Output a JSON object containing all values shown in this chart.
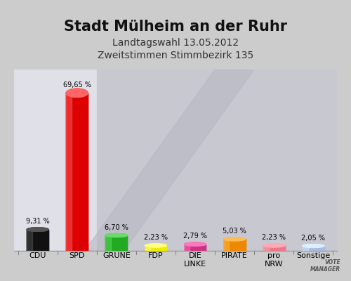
{
  "title": "Stadt Mülheim an der Ruhr",
  "subtitle1": "Landtagswahl 13.05.2012",
  "subtitle2": "Zweitstimmen Stimmbezirk 135",
  "categories": [
    "CDU",
    "SPD",
    "GRÜNE",
    "FDP",
    "DIE\nLINKE",
    "PIRATE",
    "pro\nNRW",
    "Sonstige"
  ],
  "values": [
    9.31,
    69.65,
    6.7,
    2.23,
    2.79,
    5.03,
    2.23,
    2.05
  ],
  "bar_colors": [
    "#111111",
    "#dd0000",
    "#22aa22",
    "#eeee00",
    "#cc3388",
    "#ee8800",
    "#ee7788",
    "#aabbdd"
  ],
  "bar_colors_light": [
    "#555555",
    "#ff6666",
    "#66dd66",
    "#ffff88",
    "#ff77bb",
    "#ffbb55",
    "#ffaabb",
    "#ddeeff"
  ],
  "value_labels": [
    "9,31 %",
    "69,65 %",
    "6,70 %",
    "2,23 %",
    "2,79 %",
    "5,03 %",
    "2,23 %",
    "2,05 %"
  ],
  "background_color": "#d8d8d8",
  "ylim": [
    0,
    80
  ],
  "title_fontsize": 15,
  "subtitle_fontsize": 10,
  "bar_width": 0.55
}
